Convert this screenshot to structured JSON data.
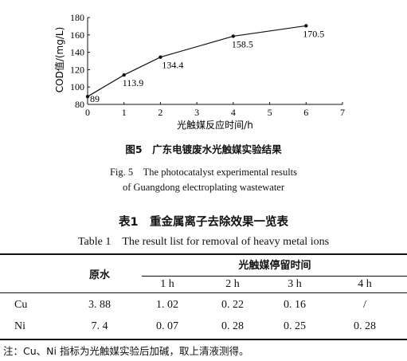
{
  "chart_data": {
    "type": "line",
    "x": [
      0,
      1,
      2,
      4,
      6
    ],
    "y": [
      89,
      113.9,
      134.4,
      158.5,
      170.5
    ],
    "point_labels": [
      "89",
      "113.9",
      "134.4",
      "158.5",
      "170.5"
    ],
    "xlabel": "光触媒反应时间/h",
    "ylabel": "COD值/(mg/L)",
    "xlim": [
      0,
      7
    ],
    "ylim": [
      80,
      180
    ],
    "xticks": [
      "0",
      "1",
      "2",
      "3",
      "4",
      "5",
      "6",
      "7"
    ],
    "yticks": [
      "80",
      "100",
      "120",
      "140",
      "160",
      "180"
    ],
    "grid": false
  },
  "figure": {
    "caption_cn": "图5　广东电镀废水光触媒实验结果",
    "caption_en_line1": "Fig. 5　The photocatalyst experimental results",
    "caption_en_line2": "of Guangdong electroplating wastewater"
  },
  "table": {
    "title_cn": "表1　重金属离子去除效果一览表",
    "title_en": "Table 1　The result list for removal of heavy metal ions",
    "header_raw": "原水",
    "header_group": "光触媒停留时间",
    "time_headers": [
      "1 h",
      "2 h",
      "3 h",
      "4 h"
    ],
    "rows": [
      {
        "element": "Cu",
        "raw": "3. 88",
        "values": [
          "1. 02",
          "0. 22",
          "0. 16",
          "/"
        ]
      },
      {
        "element": "Ni",
        "raw": "7. 4",
        "values": [
          "0. 07",
          "0. 28",
          "0. 25",
          "0. 28"
        ]
      }
    ],
    "note": "注：Cu、Ni 指标为光触媒实验后加碱，取上清液测得。"
  }
}
